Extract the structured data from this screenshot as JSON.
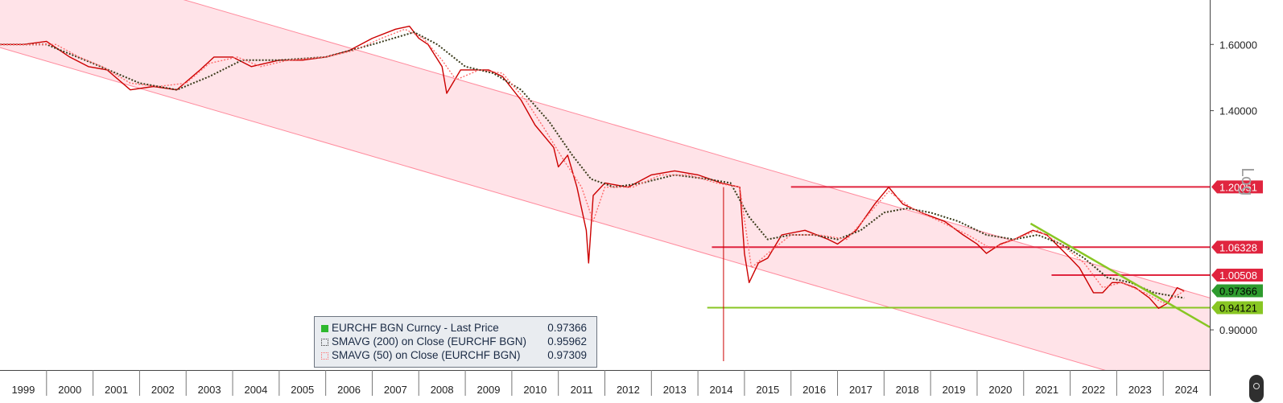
{
  "chart_data": {
    "type": "line",
    "scale": "log",
    "ylim": [
      0.83,
      1.75
    ],
    "x_range": [
      1999.0,
      2025.0
    ],
    "y_ticks": [
      {
        "value": 1.6,
        "label": "1.60000"
      },
      {
        "value": 1.4,
        "label": "1.40000"
      },
      {
        "value": 0.9,
        "label": "0.90000"
      }
    ],
    "x_ticks": [
      "1999",
      "2000",
      "2001",
      "2002",
      "2003",
      "2004",
      "2005",
      "2006",
      "2007",
      "2008",
      "2009",
      "2010",
      "2011",
      "2012",
      "2013",
      "2014",
      "2015",
      "2016",
      "2017",
      "2018",
      "2019",
      "2020",
      "2021",
      "2022",
      "2023",
      "2024"
    ],
    "series": [
      {
        "name": "EURCHF BGN Curncy - Last Price",
        "last": "0.97366",
        "color": "#cc0000",
        "points": [
          [
            1999.0,
            1.6
          ],
          [
            1999.5,
            1.6
          ],
          [
            2000.0,
            1.61
          ],
          [
            2000.5,
            1.56
          ],
          [
            2000.9,
            1.53
          ],
          [
            2001.3,
            1.52
          ],
          [
            2001.8,
            1.46
          ],
          [
            2002.3,
            1.47
          ],
          [
            2002.8,
            1.46
          ],
          [
            2003.3,
            1.52
          ],
          [
            2003.6,
            1.56
          ],
          [
            2004.0,
            1.56
          ],
          [
            2004.4,
            1.53
          ],
          [
            2005.0,
            1.55
          ],
          [
            2005.5,
            1.55
          ],
          [
            2006.0,
            1.56
          ],
          [
            2006.5,
            1.58
          ],
          [
            2007.0,
            1.62
          ],
          [
            2007.5,
            1.65
          ],
          [
            2007.8,
            1.66
          ],
          [
            2008.0,
            1.62
          ],
          [
            2008.2,
            1.6
          ],
          [
            2008.5,
            1.53
          ],
          [
            2008.6,
            1.45
          ],
          [
            2008.9,
            1.52
          ],
          [
            2009.5,
            1.52
          ],
          [
            2009.8,
            1.5
          ],
          [
            2010.2,
            1.43
          ],
          [
            2010.5,
            1.36
          ],
          [
            2010.9,
            1.3
          ],
          [
            2011.0,
            1.25
          ],
          [
            2011.2,
            1.28
          ],
          [
            2011.4,
            1.2
          ],
          [
            2011.6,
            1.1
          ],
          [
            2011.65,
            1.03
          ],
          [
            2011.75,
            1.18
          ],
          [
            2012.0,
            1.21
          ],
          [
            2012.5,
            1.2
          ],
          [
            2013.0,
            1.23
          ],
          [
            2013.5,
            1.24
          ],
          [
            2014.0,
            1.23
          ],
          [
            2014.5,
            1.21
          ],
          [
            2014.9,
            1.2
          ],
          [
            2015.0,
            1.05
          ],
          [
            2015.1,
            0.99
          ],
          [
            2015.3,
            1.03
          ],
          [
            2015.5,
            1.04
          ],
          [
            2015.8,
            1.09
          ],
          [
            2016.3,
            1.1
          ],
          [
            2016.8,
            1.08
          ],
          [
            2017.0,
            1.07
          ],
          [
            2017.4,
            1.1
          ],
          [
            2017.8,
            1.16
          ],
          [
            2018.1,
            1.2
          ],
          [
            2018.4,
            1.16
          ],
          [
            2018.8,
            1.14
          ],
          [
            2019.3,
            1.12
          ],
          [
            2019.7,
            1.09
          ],
          [
            2020.0,
            1.07
          ],
          [
            2020.2,
            1.05
          ],
          [
            2020.5,
            1.07
          ],
          [
            2020.8,
            1.08
          ],
          [
            2021.2,
            1.1
          ],
          [
            2021.5,
            1.09
          ],
          [
            2021.8,
            1.06
          ],
          [
            2022.0,
            1.04
          ],
          [
            2022.2,
            1.02
          ],
          [
            2022.5,
            0.97
          ],
          [
            2022.7,
            0.97
          ],
          [
            2022.9,
            0.99
          ],
          [
            2023.1,
            0.99
          ],
          [
            2023.4,
            0.98
          ],
          [
            2023.7,
            0.96
          ],
          [
            2023.9,
            0.94
          ],
          [
            2024.1,
            0.95
          ],
          [
            2024.3,
            0.98
          ],
          [
            2024.45,
            0.97366
          ]
        ]
      },
      {
        "name": "SMAVG (200) on Close (EURCHF BGN)",
        "last": "0.95962",
        "color": "#3a3a1a",
        "points": [
          [
            1999.0,
            1.6
          ],
          [
            2000.0,
            1.6
          ],
          [
            2001.0,
            1.54
          ],
          [
            2002.0,
            1.48
          ],
          [
            2002.8,
            1.46
          ],
          [
            2003.5,
            1.5
          ],
          [
            2004.2,
            1.55
          ],
          [
            2005.0,
            1.55
          ],
          [
            2006.0,
            1.56
          ],
          [
            2007.0,
            1.6
          ],
          [
            2007.9,
            1.64
          ],
          [
            2008.4,
            1.6
          ],
          [
            2009.0,
            1.53
          ],
          [
            2009.6,
            1.51
          ],
          [
            2010.2,
            1.46
          ],
          [
            2010.8,
            1.37
          ],
          [
            2011.3,
            1.28
          ],
          [
            2011.7,
            1.22
          ],
          [
            2012.2,
            1.2
          ],
          [
            2012.8,
            1.21
          ],
          [
            2013.5,
            1.23
          ],
          [
            2014.2,
            1.22
          ],
          [
            2014.7,
            1.21
          ],
          [
            2015.1,
            1.13
          ],
          [
            2015.5,
            1.08
          ],
          [
            2016.0,
            1.09
          ],
          [
            2016.5,
            1.09
          ],
          [
            2017.0,
            1.08
          ],
          [
            2017.5,
            1.1
          ],
          [
            2018.0,
            1.14
          ],
          [
            2018.5,
            1.15
          ],
          [
            2019.0,
            1.14
          ],
          [
            2019.6,
            1.12
          ],
          [
            2020.2,
            1.09
          ],
          [
            2020.8,
            1.08
          ],
          [
            2021.3,
            1.09
          ],
          [
            2021.8,
            1.07
          ],
          [
            2022.3,
            1.04
          ],
          [
            2022.8,
            1.0
          ],
          [
            2023.3,
            0.99
          ],
          [
            2023.8,
            0.97
          ],
          [
            2024.45,
            0.95962
          ]
        ]
      },
      {
        "name": "SMAVG (50) on Close (EURCHF BGN)",
        "last": "0.97309",
        "color": "#ff6b6b",
        "points": [
          [
            1999.0,
            1.6
          ],
          [
            1999.6,
            1.6
          ],
          [
            2000.2,
            1.6
          ],
          [
            2000.7,
            1.56
          ],
          [
            2001.2,
            1.53
          ],
          [
            2001.8,
            1.48
          ],
          [
            2002.4,
            1.47
          ],
          [
            2003.0,
            1.48
          ],
          [
            2003.5,
            1.54
          ],
          [
            2004.1,
            1.56
          ],
          [
            2004.6,
            1.53
          ],
          [
            2005.2,
            1.55
          ],
          [
            2006.0,
            1.56
          ],
          [
            2006.6,
            1.58
          ],
          [
            2007.2,
            1.62
          ],
          [
            2007.7,
            1.65
          ],
          [
            2008.1,
            1.62
          ],
          [
            2008.5,
            1.55
          ],
          [
            2008.8,
            1.49
          ],
          [
            2009.3,
            1.52
          ],
          [
            2009.8,
            1.51
          ],
          [
            2010.3,
            1.43
          ],
          [
            2010.7,
            1.35
          ],
          [
            2011.1,
            1.27
          ],
          [
            2011.5,
            1.2
          ],
          [
            2011.75,
            1.12
          ],
          [
            2012.0,
            1.2
          ],
          [
            2012.6,
            1.2
          ],
          [
            2013.2,
            1.23
          ],
          [
            2013.8,
            1.23
          ],
          [
            2014.4,
            1.21
          ],
          [
            2014.9,
            1.2
          ],
          [
            2015.15,
            1.02
          ],
          [
            2015.5,
            1.05
          ],
          [
            2016.0,
            1.09
          ],
          [
            2016.6,
            1.09
          ],
          [
            2017.2,
            1.08
          ],
          [
            2017.7,
            1.14
          ],
          [
            2018.1,
            1.19
          ],
          [
            2018.6,
            1.15
          ],
          [
            2019.2,
            1.12
          ],
          [
            2019.8,
            1.09
          ],
          [
            2020.3,
            1.06
          ],
          [
            2020.8,
            1.08
          ],
          [
            2021.3,
            1.1
          ],
          [
            2021.8,
            1.07
          ],
          [
            2022.3,
            1.03
          ],
          [
            2022.7,
            0.98
          ],
          [
            2023.1,
            0.99
          ],
          [
            2023.6,
            0.97
          ],
          [
            2024.0,
            0.95
          ],
          [
            2024.45,
            0.97309
          ]
        ]
      }
    ],
    "channel": {
      "color": "#ffe3e8",
      "upper": [
        [
          1999.0,
          1.95
        ],
        [
          2025.0,
          0.96
        ]
      ],
      "lower": [
        [
          1999.0,
          1.59
        ],
        [
          2025.0,
          0.78
        ]
      ]
    },
    "horizontal_lines": [
      {
        "value": 1.20051,
        "label": "1.20051",
        "color": "#e0253f",
        "from": 2016.0,
        "text_color": "#ffffff"
      },
      {
        "value": 1.06328,
        "label": "1.06328",
        "color": "#e0253f",
        "from": 2014.3,
        "text_color": "#ffffff"
      },
      {
        "value": 1.00508,
        "label": "1.00508",
        "color": "#e0253f",
        "from": 2021.6,
        "text_color": "#ffffff"
      },
      {
        "value": 0.94121,
        "label": "0.94121",
        "color": "#88c623",
        "from": 2014.2,
        "text_color": "#000000"
      }
    ],
    "price_badge": {
      "value": 0.97366,
      "label": "0.97366",
      "color": "#2e9b2e"
    },
    "trendline": {
      "color": "#88c623",
      "points": [
        [
          2021.15,
          1.115
        ],
        [
          2025.0,
          0.905
        ]
      ]
    },
    "spike_line": {
      "x": 2014.55,
      "y_from": 0.845,
      "y_to": 1.2,
      "color": "#cc0000"
    },
    "scale_label": "Log",
    "legend": {
      "position": "bottom-center",
      "entries": [
        {
          "label": "EURCHF BGN Curncy - Last Price",
          "value": "0.97366"
        },
        {
          "label": "SMAVG (200)  on Close (EURCHF BGN)",
          "value": "0.95962"
        },
        {
          "label": "SMAVG (50)  on Close (EURCHF BGN)",
          "value": "0.97309"
        }
      ]
    },
    "grid": false
  }
}
